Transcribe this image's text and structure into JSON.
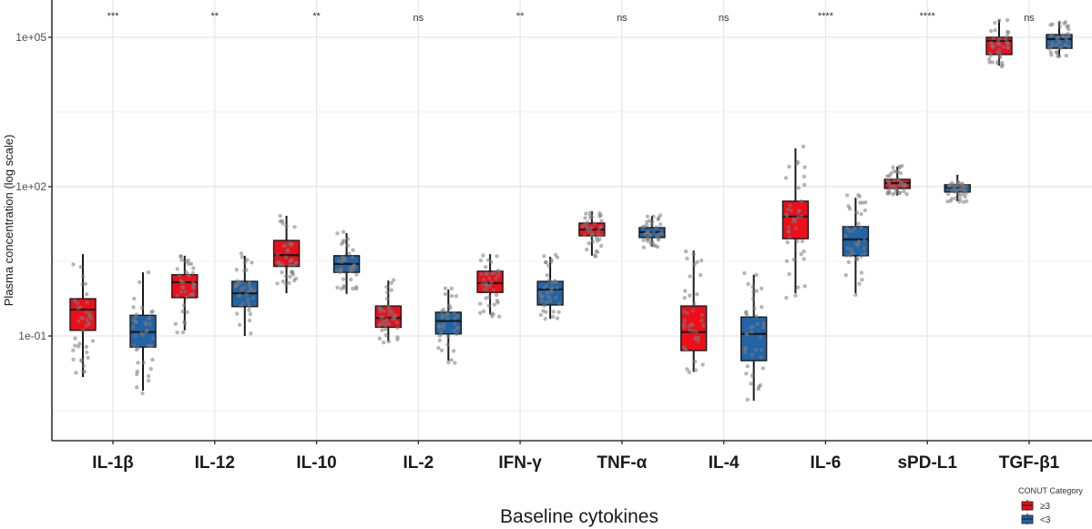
{
  "chart_data": {
    "type": "box",
    "title": "",
    "xlabel": "Baseline cytokines",
    "ylabel": "Plasma concentration (log scale)",
    "yscale": "log10",
    "ylim": [
      0.00079,
      560000
    ],
    "y_ticks": [
      {
        "value": 0.1,
        "label": "1e-01"
      },
      {
        "value": 100,
        "label": "1e+02"
      },
      {
        "value": 100000,
        "label": "1e+05"
      }
    ],
    "grid": true,
    "categories": [
      "IL-1β",
      "IL-12",
      "IL-10",
      "IL-2",
      "IFN-γ",
      "TNF-α",
      "IL-4",
      "IL-6",
      "sPD-L1",
      "TGF-β1"
    ],
    "significance": [
      "***",
      "**",
      "**",
      "ns",
      "**",
      "ns",
      "ns",
      "****",
      "****",
      "ns"
    ],
    "legend": {
      "title": "CONUT Category",
      "position": "bottom-right",
      "entries": [
        {
          "label": "≥3",
          "color": "#ee0d19"
        },
        {
          "label": "<3",
          "color": "#2164a8"
        }
      ]
    },
    "series": [
      {
        "name": "≥3",
        "color": "#ee0d19",
        "boxes": [
          {
            "whisker_low": 0.015,
            "q1": 0.13,
            "median": 0.34,
            "q3": 0.56,
            "whisker_high": 4.4
          },
          {
            "whisker_low": 0.13,
            "q1": 0.59,
            "median": 1.2,
            "q3": 1.7,
            "whisker_high": 4.1
          },
          {
            "whisker_low": 0.72,
            "q1": 2.5,
            "median": 4.2,
            "q3": 8.3,
            "whisker_high": 26
          },
          {
            "whisker_low": 0.078,
            "q1": 0.15,
            "median": 0.23,
            "q3": 0.4,
            "whisker_high": 1.3
          },
          {
            "whisker_low": 0.27,
            "q1": 0.75,
            "median": 1.15,
            "q3": 2.0,
            "whisker_high": 4.4
          },
          {
            "whisker_low": 4.1,
            "q1": 10.3,
            "median": 13.8,
            "q3": 18.5,
            "whisker_high": 32
          },
          {
            "whisker_low": 0.019,
            "q1": 0.051,
            "median": 0.12,
            "q3": 0.4,
            "whisker_high": 5.2
          },
          {
            "whisker_low": 0.72,
            "q1": 9,
            "median": 25,
            "q3": 51,
            "whisker_high": 590
          },
          {
            "whisker_low": 66,
            "q1": 92,
            "median": 118,
            "q3": 140,
            "whisker_high": 253
          },
          {
            "whisker_low": 27000,
            "q1": 45000,
            "median": 84500,
            "q3": 100000,
            "whisker_high": 223000
          }
        ]
      },
      {
        "name": "<3",
        "color": "#2164a8",
        "boxes": [
          {
            "whisker_low": 0.008,
            "q1": 0.06,
            "median": 0.12,
            "q3": 0.26,
            "whisker_high": 1.9
          },
          {
            "whisker_low": 0.1,
            "q1": 0.39,
            "median": 0.72,
            "q3": 1.25,
            "whisker_high": 4.1
          },
          {
            "whisker_low": 0.7,
            "q1": 1.9,
            "median": 2.8,
            "q3": 4.1,
            "whisker_high": 11.7
          },
          {
            "whisker_low": 0.032,
            "q1": 0.11,
            "median": 0.2,
            "q3": 0.3,
            "whisker_high": 0.86
          },
          {
            "whisker_low": 0.22,
            "q1": 0.42,
            "median": 0.86,
            "q3": 1.25,
            "whisker_high": 3.9
          },
          {
            "whisker_low": 6.2,
            "q1": 9.5,
            "median": 12.2,
            "q3": 15,
            "whisker_high": 26
          },
          {
            "whisker_low": 0.005,
            "q1": 0.032,
            "median": 0.11,
            "q3": 0.24,
            "whisker_high": 1.7
          },
          {
            "whisker_low": 0.72,
            "q1": 4.1,
            "median": 8.7,
            "q3": 15.7,
            "whisker_high": 60
          },
          {
            "whisker_low": 51,
            "q1": 78,
            "median": 96,
            "q3": 109,
            "whisker_high": 173
          },
          {
            "whisker_low": 41000,
            "q1": 60000,
            "median": 92000,
            "q3": 113000,
            "whisker_high": 205000
          }
        ]
      }
    ],
    "points_per_box_approx": 40
  }
}
